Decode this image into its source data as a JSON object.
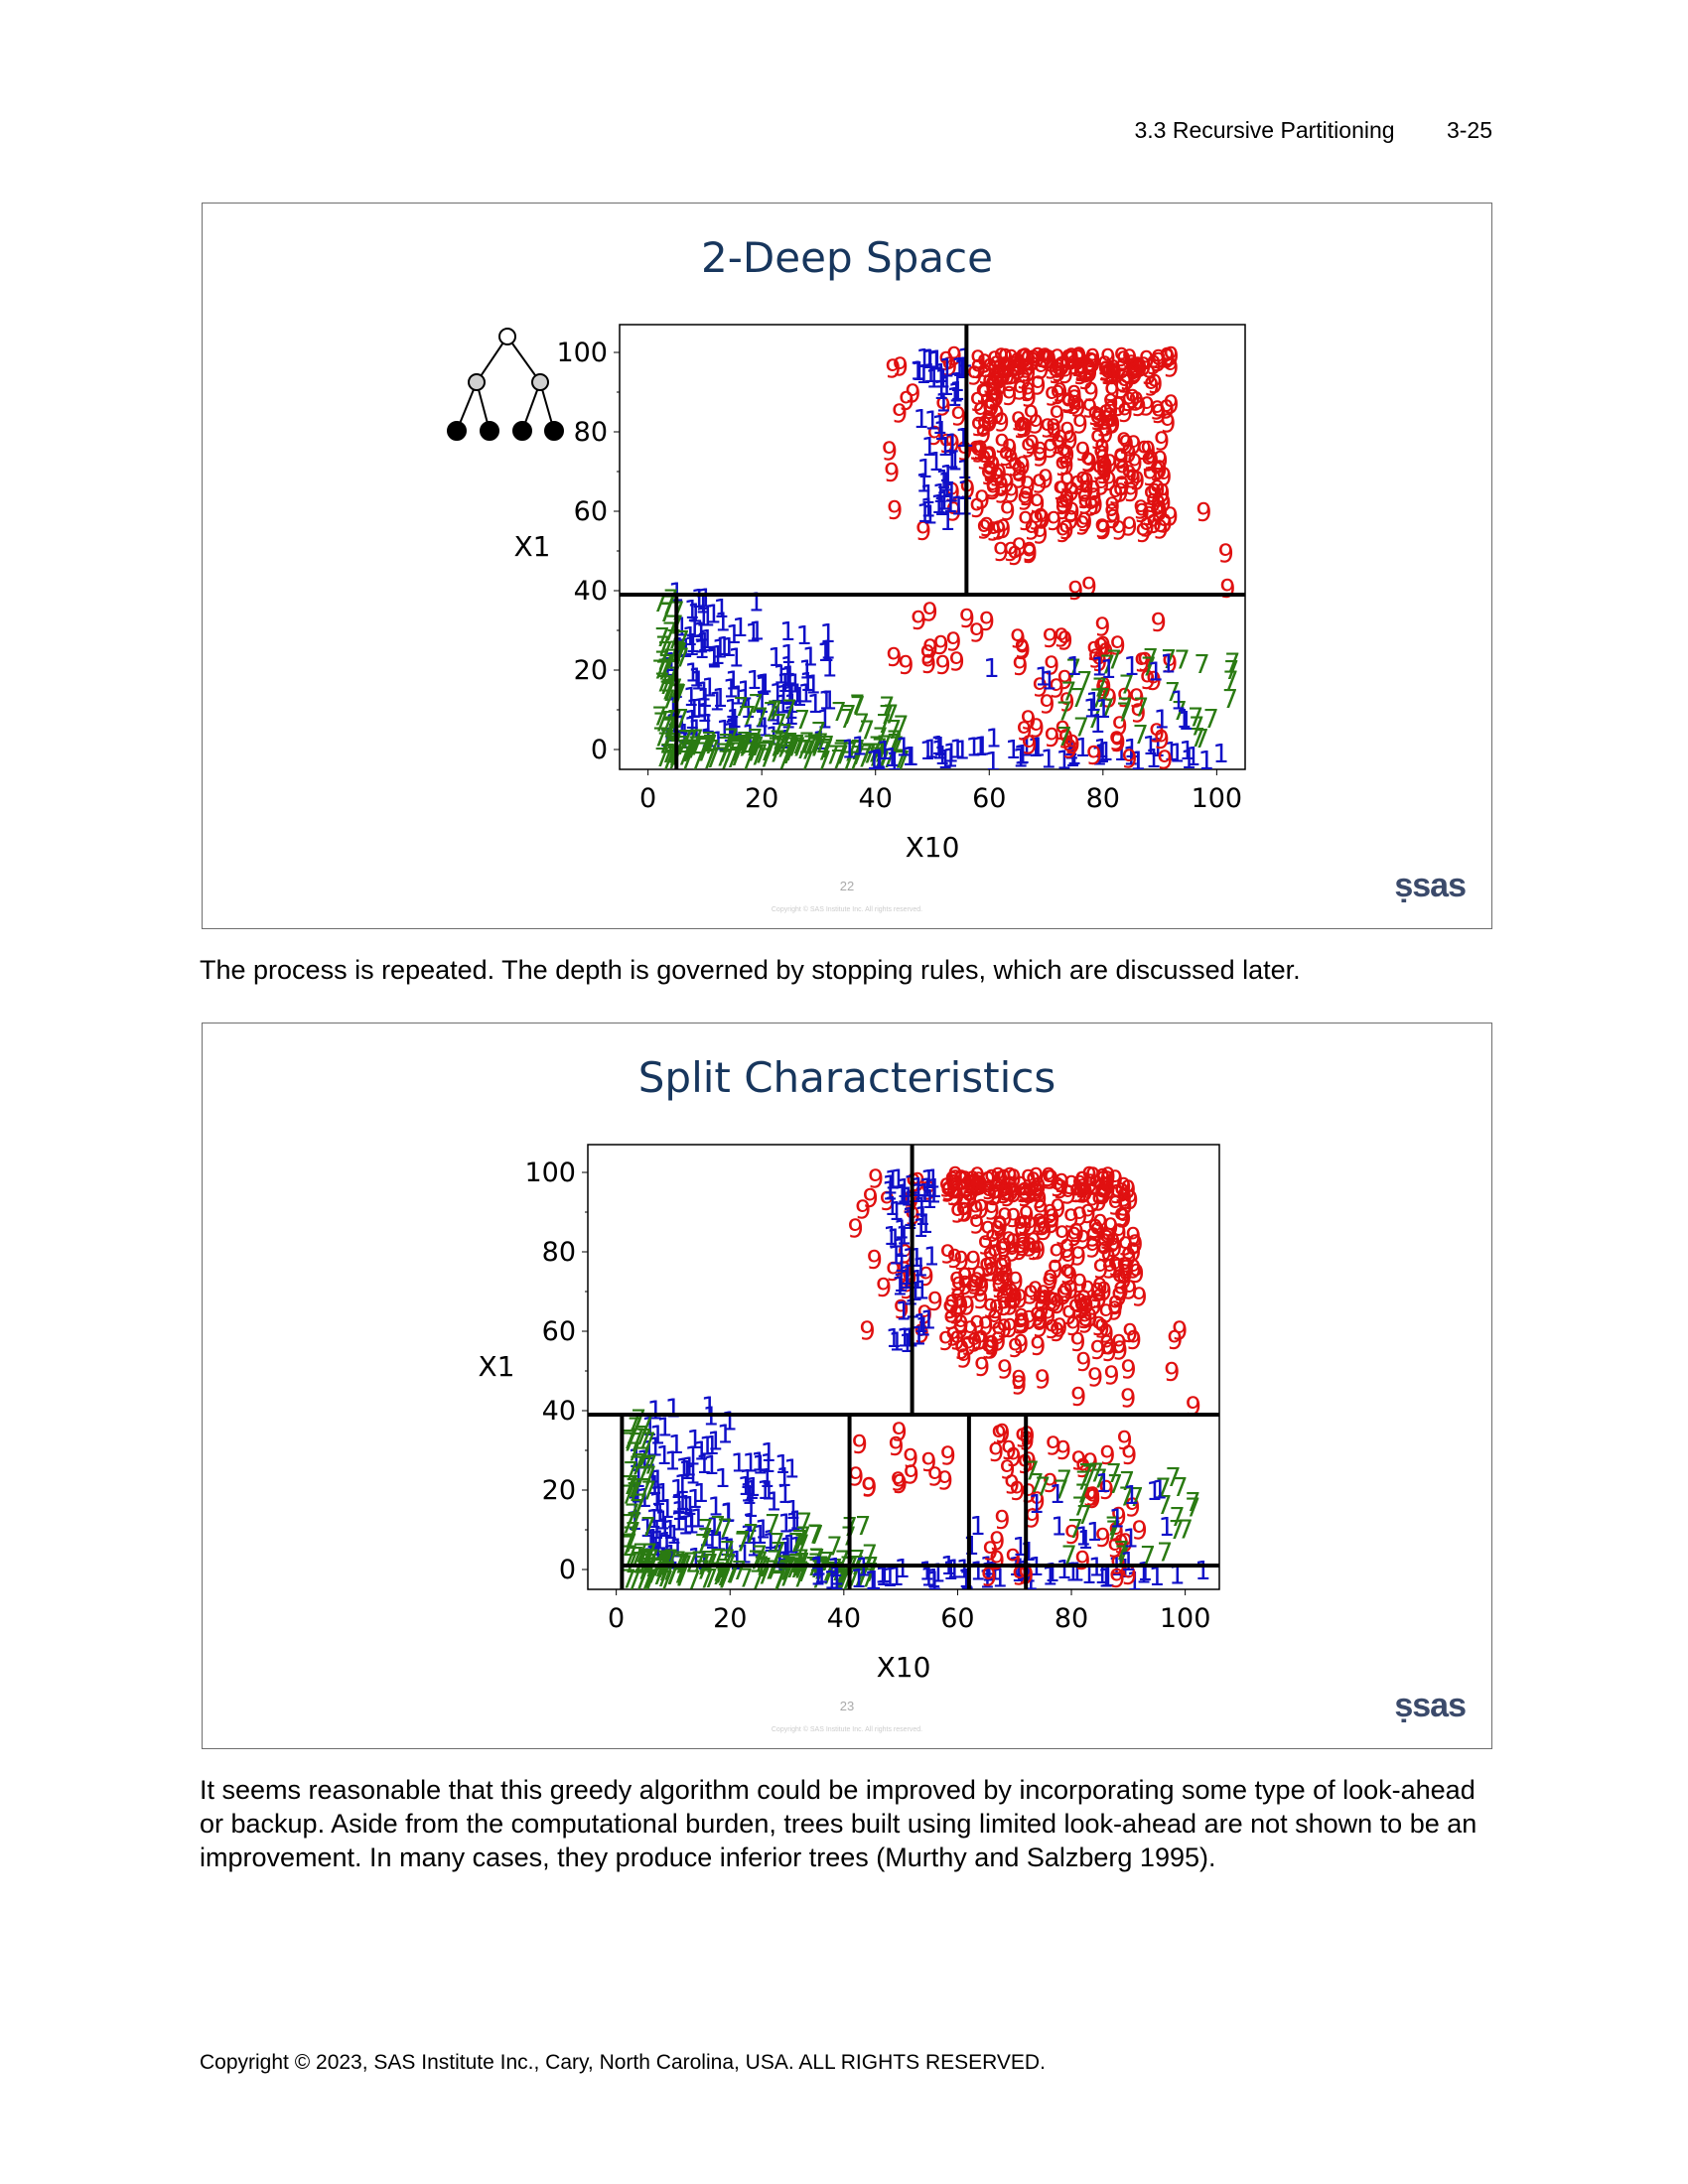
{
  "header": {
    "section": "3.3  Recursive Partitioning",
    "page": "3-25"
  },
  "slides": [
    {
      "title": "2-Deep Space",
      "number": "22",
      "copyright": "Copyright © SAS Institute Inc. All rights reserved.",
      "logo": "Ssas"
    },
    {
      "title": "Split Characteristics",
      "number": "23",
      "copyright": "Copyright © SAS Institute Inc. All rights reserved.",
      "logo": "Ssas"
    }
  ],
  "paragraphs": [
    "The process is repeated. The depth is governed by stopping rules, which are discussed later.",
    "It seems reasonable that this greedy algorithm could be improved by incorporating some type of look-ahead or backup. Aside from the computational burden, trees built using limited look-ahead are not shown to be an improvement. In many cases, they produce inferior trees (Murthy and Salzberg 1995)."
  ],
  "footer": "Copyright © 2023, SAS Institute Inc., Cary, North Carolina, USA. ALL RIGHTS RESERVED.",
  "colors": {
    "class_1": "#1010c8",
    "class_7": "#2a7a12",
    "class_9": "#e01010",
    "title": "#17365d"
  },
  "chart_data": [
    {
      "type": "scatter",
      "title": "2-Deep Space",
      "xlabel": "X10",
      "ylabel": "X1",
      "xlim": [
        -5,
        105
      ],
      "ylim": [
        -5,
        107
      ],
      "xticks": [
        "0",
        "20",
        "40",
        "60",
        "80",
        "100"
      ],
      "yticks": [
        "0",
        "20",
        "40",
        "60",
        "80",
        "100"
      ],
      "point_labels": [
        "1",
        "7",
        "9"
      ],
      "split_lines": [
        {
          "orientation": "horizontal",
          "at": 39,
          "from": -5,
          "to": 105
        },
        {
          "orientation": "vertical",
          "at": 56,
          "from": 39,
          "to": 107
        },
        {
          "orientation": "vertical",
          "at": 5,
          "from": -5,
          "to": 39
        }
      ]
    },
    {
      "type": "scatter",
      "title": "Split Characteristics",
      "xlabel": "X10",
      "ylabel": "X1",
      "xlim": [
        -5,
        106
      ],
      "ylim": [
        -5,
        107
      ],
      "xticks": [
        "0",
        "20",
        "40",
        "60",
        "80",
        "100"
      ],
      "yticks": [
        "0",
        "20",
        "40",
        "60",
        "80",
        "100"
      ],
      "point_labels": [
        "1",
        "7",
        "9"
      ],
      "split_lines": [
        {
          "orientation": "horizontal",
          "at": 39,
          "from": -5,
          "to": 106
        },
        {
          "orientation": "vertical",
          "at": 52,
          "from": 39,
          "to": 107
        },
        {
          "orientation": "vertical",
          "at": 1,
          "from": -5,
          "to": 39
        },
        {
          "orientation": "vertical",
          "at": 41,
          "from": -5,
          "to": 39
        },
        {
          "orientation": "vertical",
          "at": 62,
          "from": -5,
          "to": 39
        },
        {
          "orientation": "vertical",
          "at": 72,
          "from": -5,
          "to": 39
        },
        {
          "orientation": "horizontal",
          "at": 1,
          "from": 1,
          "to": 106
        }
      ]
    }
  ]
}
